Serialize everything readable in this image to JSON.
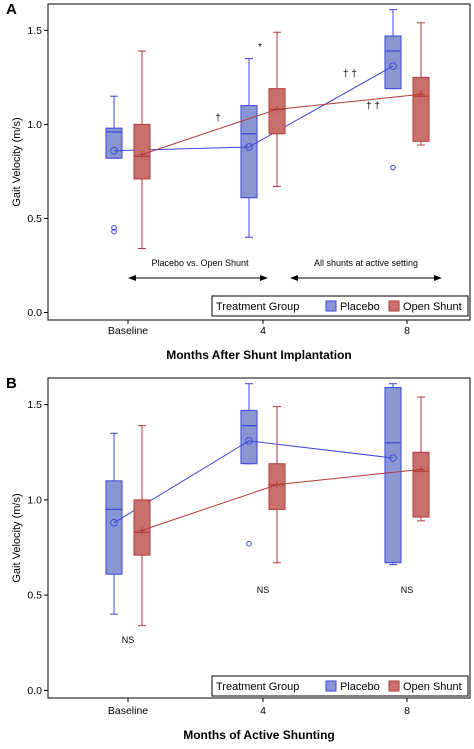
{
  "colors": {
    "placebo_fill": "#8a96d2",
    "placebo_stroke": "#3a46d8",
    "shunt_fill": "#c8706c",
    "shunt_stroke": "#b33a36",
    "frame": "#000000"
  },
  "chart_data": [
    {
      "panel": "A",
      "type": "box",
      "ylabel": "Gait Velocity (m/s)",
      "xlabel": "Months After Shunt Implantation",
      "categories": [
        "Baseline",
        "4",
        "8"
      ],
      "ylim": [
        -0.04,
        1.64
      ],
      "yticks": [
        "0.0",
        "0.5",
        "1.0",
        "1.5"
      ],
      "ytick_values": [
        0.0,
        0.5,
        1.0,
        1.5
      ],
      "grid": false,
      "legend": {
        "title": "Treatment Group",
        "position": "bottom-right",
        "entries": [
          "Placebo",
          "Open Shunt"
        ]
      },
      "series": [
        {
          "name": "Placebo",
          "boxes": [
            {
              "category": "Baseline",
              "whisker_low": 0.82,
              "q1": 0.82,
              "median": 0.96,
              "q3": 0.98,
              "whisker_high": 1.15,
              "mean": 0.86,
              "outliers": [
                0.43,
                0.45
              ]
            },
            {
              "category": "4",
              "whisker_low": 0.4,
              "q1": 0.61,
              "median": 0.95,
              "q3": 1.1,
              "whisker_high": 1.35,
              "mean": 0.88,
              "outliers": []
            },
            {
              "category": "8",
              "whisker_low": 1.19,
              "q1": 1.19,
              "median": 1.39,
              "q3": 1.47,
              "whisker_high": 1.61,
              "mean": 1.31,
              "outliers": [
                0.77
              ]
            }
          ]
        },
        {
          "name": "Open Shunt",
          "boxes": [
            {
              "category": "Baseline",
              "whisker_low": 0.34,
              "q1": 0.71,
              "median": 0.83,
              "q3": 1.0,
              "whisker_high": 1.39,
              "mean": 0.84,
              "outliers": []
            },
            {
              "category": "4",
              "whisker_low": 0.67,
              "q1": 0.95,
              "median": 1.08,
              "q3": 1.19,
              "whisker_high": 1.49,
              "mean": 1.08,
              "outliers": []
            },
            {
              "category": "8",
              "whisker_low": 0.89,
              "q1": 0.91,
              "median": 1.15,
              "q3": 1.25,
              "whisker_high": 1.54,
              "mean": 1.16,
              "outliers": []
            }
          ]
        }
      ],
      "annotations": {
        "arrow_left": "Placebo vs. Open Shunt",
        "arrow_right": "All shunts at active setting",
        "sig_star": "*",
        "sig_dagger": "†",
        "sig_dd_placebo": "† †",
        "sig_dd_shunt": "† †"
      }
    },
    {
      "panel": "B",
      "type": "box",
      "ylabel": "Gait Velocity (m/s)",
      "xlabel": "Months of Active Shunting",
      "categories": [
        "Baseline",
        "4",
        "8"
      ],
      "ylim": [
        -0.04,
        1.64
      ],
      "yticks": [
        "0.0",
        "0.5",
        "1.0",
        "1.5"
      ],
      "ytick_values": [
        0.0,
        0.5,
        1.0,
        1.5
      ],
      "grid": false,
      "legend": {
        "title": "Treatment Group",
        "position": "bottom-right",
        "entries": [
          "Placebo",
          "Open Shunt"
        ]
      },
      "series": [
        {
          "name": "Placebo",
          "boxes": [
            {
              "category": "Baseline",
              "whisker_low": 0.4,
              "q1": 0.61,
              "median": 0.95,
              "q3": 1.1,
              "whisker_high": 1.35,
              "mean": 0.88,
              "outliers": []
            },
            {
              "category": "4",
              "whisker_low": 1.19,
              "q1": 1.19,
              "median": 1.39,
              "q3": 1.47,
              "whisker_high": 1.61,
              "mean": 1.31,
              "outliers": [
                0.77
              ]
            },
            {
              "category": "8",
              "whisker_low": 0.66,
              "q1": 0.67,
              "median": 1.3,
              "q3": 1.59,
              "whisker_high": 1.61,
              "mean": 1.22,
              "outliers": []
            }
          ]
        },
        {
          "name": "Open Shunt",
          "boxes": [
            {
              "category": "Baseline",
              "whisker_low": 0.34,
              "q1": 0.71,
              "median": 0.83,
              "q3": 1.0,
              "whisker_high": 1.39,
              "mean": 0.84,
              "outliers": []
            },
            {
              "category": "4",
              "whisker_low": 0.67,
              "q1": 0.95,
              "median": 1.08,
              "q3": 1.19,
              "whisker_high": 1.49,
              "mean": 1.08,
              "outliers": []
            },
            {
              "category": "8",
              "whisker_low": 0.89,
              "q1": 0.91,
              "median": 1.15,
              "q3": 1.25,
              "whisker_high": 1.54,
              "mean": 1.16,
              "outliers": []
            }
          ]
        }
      ],
      "annotations": {
        "ns": [
          "NS",
          "NS",
          "NS"
        ]
      }
    }
  ]
}
